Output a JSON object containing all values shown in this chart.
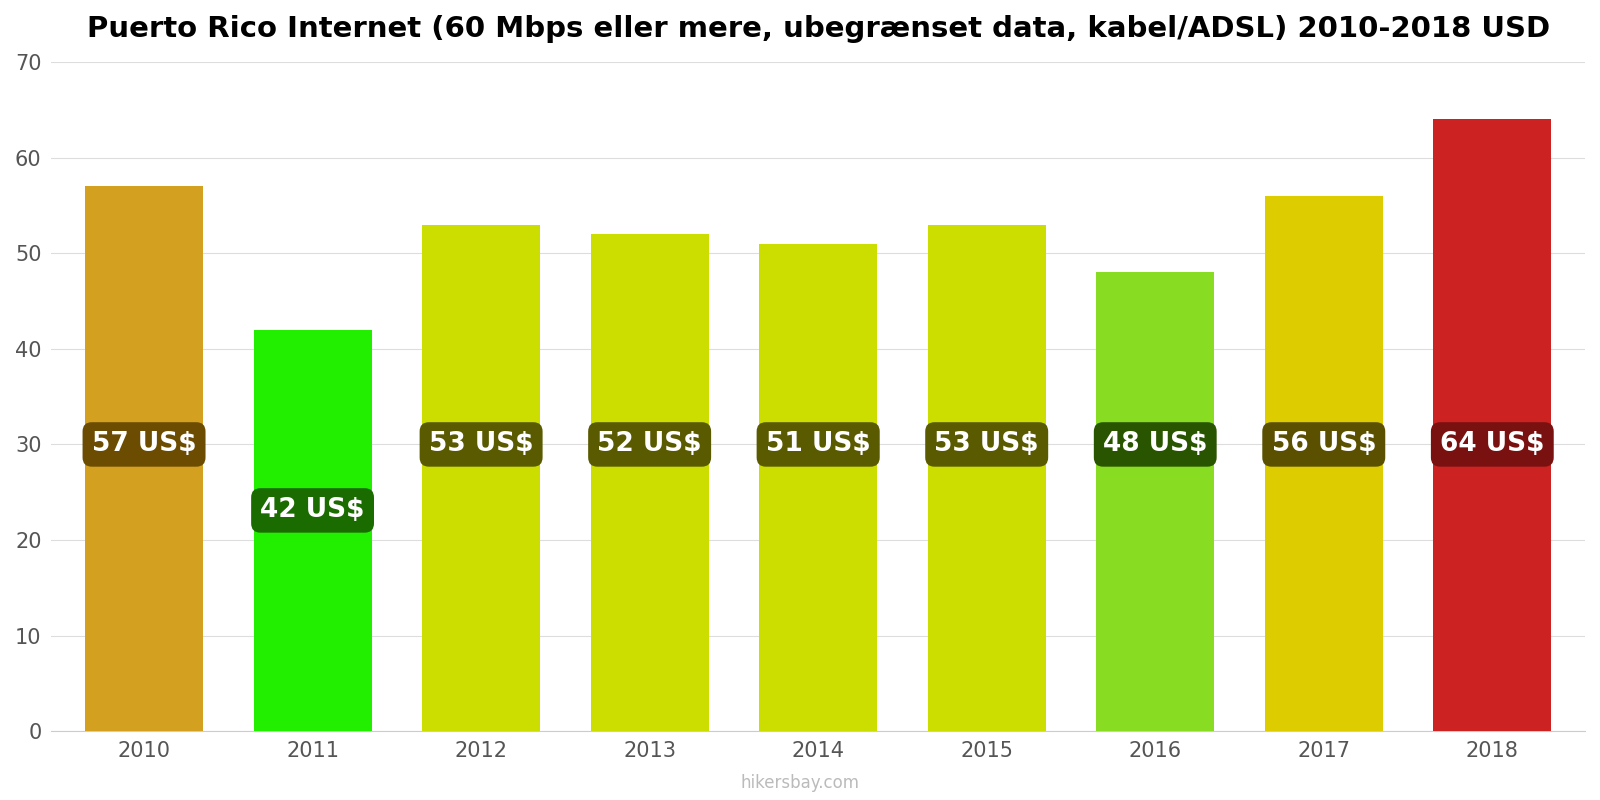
{
  "title": "Puerto Rico Internet (60 Mbps eller mere, ubegrænset data, kabel/ADSL) 2010-2018 USD",
  "years": [
    2010,
    2011,
    2012,
    2013,
    2014,
    2015,
    2016,
    2017,
    2018
  ],
  "values": [
    57,
    42,
    53,
    52,
    51,
    53,
    48,
    56,
    64
  ],
  "bar_colors": [
    "#D4A020",
    "#22EE00",
    "#CCDD00",
    "#CCDD00",
    "#CCDD00",
    "#CCDD00",
    "#88DD22",
    "#DDCC00",
    "#CC2222"
  ],
  "label_bg_colors": [
    "#6B4C00",
    "#1A6B00",
    "#5A5A00",
    "#5A5A00",
    "#5A5A00",
    "#5A5A00",
    "#2A5500",
    "#5A5000",
    "#7A1111"
  ],
  "ylim": [
    0,
    70
  ],
  "yticks": [
    0,
    10,
    20,
    30,
    40,
    50,
    60,
    70
  ],
  "watermark": "hikersbay.com",
  "background_color": "#ffffff",
  "label_fontsize": 19,
  "title_fontsize": 21
}
